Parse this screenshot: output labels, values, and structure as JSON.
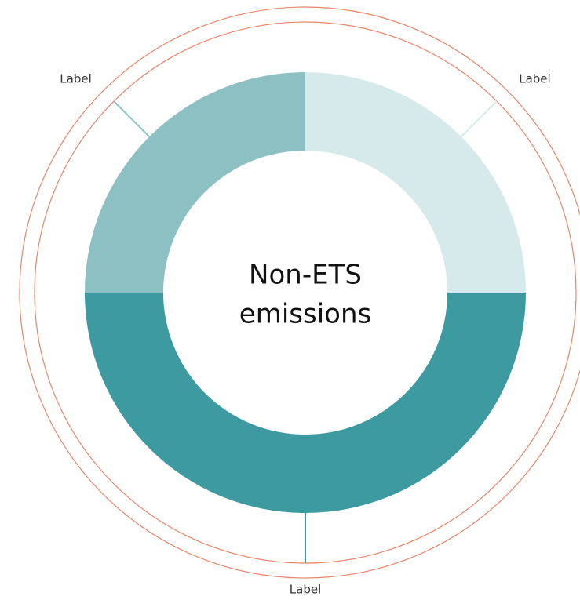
{
  "chart_data": {
    "type": "pie",
    "donut": true,
    "center_text": [
      "Non-ETS",
      "emissions"
    ],
    "categories": [
      "Label",
      "Label",
      "Label"
    ],
    "values": [
      25,
      50,
      25
    ],
    "colors": [
      "#d6eaeb",
      "#3d9aa1",
      "#8dc0c3"
    ],
    "ring_color": "#e8866a"
  }
}
